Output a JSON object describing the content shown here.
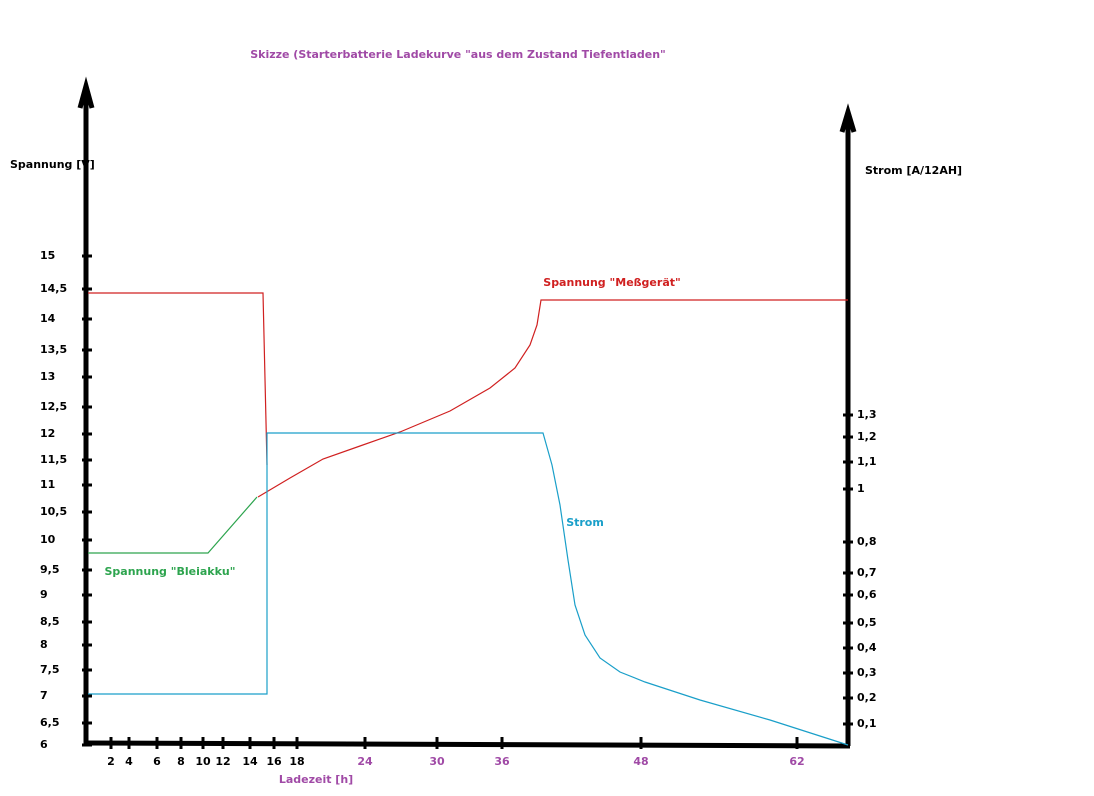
{
  "title": "Skizze (Starterbatterie Ladekurve \"aus dem Zustand Tiefentladen\"",
  "left_axis": {
    "label": "Spannung [V]",
    "ticks": [
      "15",
      "14,5",
      "14",
      "13,5",
      "13",
      "12,5",
      "12",
      "11,5",
      "11",
      "10,5",
      "10",
      "9,5",
      "9",
      "8,5",
      "8",
      "7,5",
      "7",
      "6,5",
      "6"
    ]
  },
  "right_axis": {
    "label": "Strom [A/12AH]",
    "ticks": [
      "1,3",
      "1,2",
      "1,1",
      "1",
      "0,8",
      "0,7",
      "0,6",
      "0,5",
      "0,4",
      "0,3",
      "0,2",
      "0,1"
    ]
  },
  "x_axis": {
    "label": "Ladezeit [h]",
    "ticks": [
      "2",
      "4",
      "6",
      "8",
      "10",
      "12",
      "14",
      "16",
      "18",
      "24",
      "30",
      "36",
      "48",
      "62"
    ]
  },
  "curves": {
    "messgeraet": "Spannung \"Meßgerät\"",
    "strom": "Strom",
    "bleiakku": "Spannung \"Bleiakku\""
  }
}
